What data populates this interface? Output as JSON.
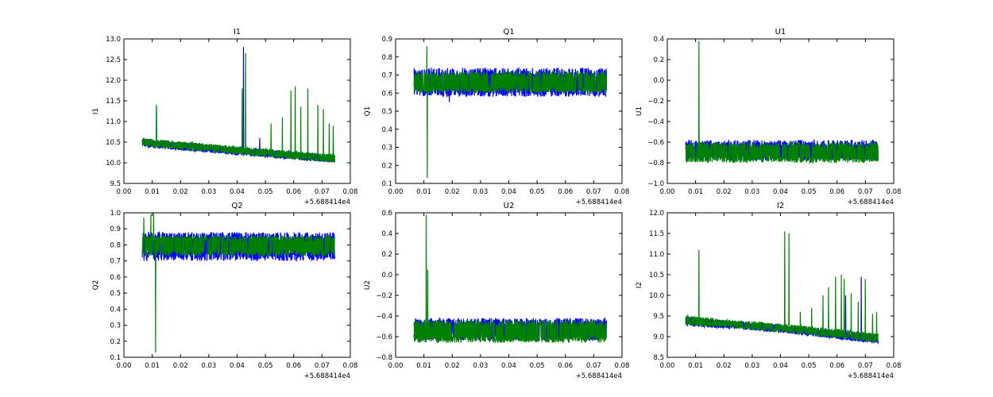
{
  "chart_data": [
    {
      "type": "line",
      "title": "I1",
      "ylabel": "I1",
      "xlabel": "",
      "offset_text": "+5.688414e4",
      "xlim": [
        0.0,
        0.08
      ],
      "ylim": [
        9.5,
        13.0
      ],
      "xticks": [
        "0.00",
        "0.01",
        "0.02",
        "0.03",
        "0.04",
        "0.05",
        "0.06",
        "0.07",
        "0.08"
      ],
      "yticks": [
        "9.5",
        "10.0",
        "10.5",
        "11.0",
        "11.5",
        "12.0",
        "12.5",
        "13.0"
      ],
      "x_range_data": [
        0.0065,
        0.0745
      ],
      "series": [
        {
          "color": "#0000ff",
          "band": [
            [
              0.0065,
              10.38,
              10.58
            ],
            [
              0.02,
              10.3,
              10.5
            ],
            [
              0.04,
              10.18,
              10.38
            ],
            [
              0.0745,
              10.0,
              10.18
            ]
          ],
          "spikes": [
            [
              0.0115,
              11.35
            ],
            [
              0.0422,
              12.8
            ],
            [
              0.048,
              10.6
            ]
          ]
        },
        {
          "color": "#008000",
          "band": [
            [
              0.0065,
              10.4,
              10.6
            ],
            [
              0.02,
              10.32,
              10.52
            ],
            [
              0.04,
              10.2,
              10.4
            ],
            [
              0.0745,
              10.0,
              10.2
            ]
          ],
          "spikes": [
            [
              0.0115,
              11.4
            ],
            [
              0.0418,
              11.8
            ],
            [
              0.043,
              12.65
            ],
            [
              0.052,
              10.95
            ],
            [
              0.056,
              11.1
            ],
            [
              0.059,
              11.75
            ],
            [
              0.0605,
              11.85
            ],
            [
              0.0625,
              11.35
            ],
            [
              0.065,
              11.8
            ],
            [
              0.0685,
              11.4
            ],
            [
              0.0705,
              11.3
            ],
            [
              0.0725,
              10.95
            ],
            [
              0.074,
              10.9
            ]
          ]
        }
      ]
    },
    {
      "type": "line",
      "title": "Q1",
      "ylabel": "Q1",
      "xlabel": "",
      "offset_text": "+5.688414e4",
      "xlim": [
        0.0,
        0.08
      ],
      "ylim": [
        0.1,
        0.9
      ],
      "xticks": [
        "0.00",
        "0.01",
        "0.02",
        "0.03",
        "0.04",
        "0.05",
        "0.06",
        "0.07",
        "0.08"
      ],
      "yticks": [
        "0.1",
        "0.2",
        "0.3",
        "0.4",
        "0.5",
        "0.6",
        "0.7",
        "0.8",
        "0.9"
      ],
      "x_range_data": [
        0.0065,
        0.0745
      ],
      "series": [
        {
          "color": "#0000ff",
          "band": [
            [
              0.0065,
              0.58,
              0.74
            ],
            [
              0.0745,
              0.58,
              0.74
            ]
          ],
          "spikes": [
            [
              0.019,
              0.55
            ]
          ]
        },
        {
          "color": "#008000",
          "band": [
            [
              0.0065,
              0.6,
              0.72
            ],
            [
              0.0745,
              0.6,
              0.72
            ]
          ],
          "spikes": [
            [
              0.0112,
              0.13
            ],
            [
              0.011,
              0.86
            ]
          ]
        }
      ]
    },
    {
      "type": "line",
      "title": "U1",
      "ylabel": "U1",
      "xlabel": "",
      "offset_text": "+5.688414e4",
      "xlim": [
        0.0,
        0.08
      ],
      "ylim": [
        -1.0,
        0.4
      ],
      "xticks": [
        "0.00",
        "0.01",
        "0.02",
        "0.03",
        "0.04",
        "0.05",
        "0.06",
        "0.07",
        "0.08"
      ],
      "yticks": [
        "−1.0",
        "−0.8",
        "−0.6",
        "−0.4",
        "−0.2",
        "0.0",
        "0.2",
        "0.4"
      ],
      "x_range_data": [
        0.0065,
        0.0745
      ],
      "series": [
        {
          "color": "#0000ff",
          "band": [
            [
              0.0065,
              -0.78,
              -0.58
            ],
            [
              0.0745,
              -0.78,
              -0.58
            ]
          ],
          "spikes": []
        },
        {
          "color": "#008000",
          "band": [
            [
              0.0065,
              -0.8,
              -0.6
            ],
            [
              0.0745,
              -0.8,
              -0.6
            ]
          ],
          "spikes": [
            [
              0.0112,
              0.38
            ]
          ]
        }
      ]
    },
    {
      "type": "line",
      "title": "Q2",
      "ylabel": "Q2",
      "xlabel": "",
      "offset_text": "+5.688414e4",
      "xlim": [
        0.0,
        0.08
      ],
      "ylim": [
        0.1,
        1.0
      ],
      "xticks": [
        "0.00",
        "0.01",
        "0.02",
        "0.03",
        "0.04",
        "0.05",
        "0.06",
        "0.07",
        "0.08"
      ],
      "yticks": [
        "0.1",
        "0.2",
        "0.3",
        "0.4",
        "0.5",
        "0.6",
        "0.7",
        "0.8",
        "0.9",
        "1.0"
      ],
      "x_range_data": [
        0.0065,
        0.0745
      ],
      "series": [
        {
          "color": "#0000ff",
          "band": [
            [
              0.0065,
              0.7,
              0.88
            ],
            [
              0.0745,
              0.7,
              0.88
            ]
          ],
          "spikes": [
            [
              0.0112,
              0.57
            ]
          ]
        },
        {
          "color": "#008000",
          "band": [
            [
              0.0065,
              0.73,
              0.86
            ],
            [
              0.0745,
              0.73,
              0.86
            ]
          ],
          "spikes": [
            [
              0.0112,
              0.13
            ],
            [
              0.0105,
              1.0
            ],
            [
              0.0095,
              0.99
            ],
            [
              0.007,
              0.97
            ]
          ]
        }
      ]
    },
    {
      "type": "line",
      "title": "U2",
      "ylabel": "U2",
      "xlabel": "",
      "offset_text": "+5.688414e4",
      "xlim": [
        0.0,
        0.08
      ],
      "ylim": [
        -0.8,
        0.6
      ],
      "xticks": [
        "0.00",
        "0.01",
        "0.02",
        "0.03",
        "0.04",
        "0.05",
        "0.06",
        "0.07",
        "0.08"
      ],
      "yticks": [
        "−0.8",
        "−0.6",
        "−0.4",
        "−0.2",
        "0.0",
        "0.2",
        "0.4",
        "0.6"
      ],
      "x_range_data": [
        0.0065,
        0.0745
      ],
      "series": [
        {
          "color": "#0000ff",
          "band": [
            [
              0.0065,
              -0.64,
              -0.42
            ],
            [
              0.0745,
              -0.64,
              -0.42
            ]
          ],
          "spikes": []
        },
        {
          "color": "#008000",
          "band": [
            [
              0.0065,
              -0.66,
              -0.44
            ],
            [
              0.0745,
              -0.66,
              -0.44
            ]
          ],
          "spikes": [
            [
              0.0108,
              0.58
            ],
            [
              0.0113,
              0.05
            ]
          ]
        }
      ]
    },
    {
      "type": "line",
      "title": "I2",
      "ylabel": "I2",
      "xlabel": "",
      "offset_text": "+5.688414e4",
      "xlim": [
        0.0,
        0.08
      ],
      "ylim": [
        8.5,
        12.0
      ],
      "xticks": [
        "0.00",
        "0.01",
        "0.02",
        "0.03",
        "0.04",
        "0.05",
        "0.06",
        "0.07",
        "0.08"
      ],
      "yticks": [
        "8.5",
        "9.0",
        "9.5",
        "10.0",
        "10.5",
        "11.0",
        "11.5",
        "12.0"
      ],
      "x_range_data": [
        0.0065,
        0.0745
      ],
      "series": [
        {
          "color": "#0000ff",
          "band": [
            [
              0.0065,
              9.25,
              9.5
            ],
            [
              0.02,
              9.2,
              9.4
            ],
            [
              0.04,
              9.1,
              9.3
            ],
            [
              0.0745,
              8.82,
              9.05
            ]
          ],
          "spikes": [
            [
              0.0685,
              10.45
            ],
            [
              0.063,
              10.0
            ]
          ]
        },
        {
          "color": "#008000",
          "band": [
            [
              0.0065,
              9.28,
              9.52
            ],
            [
              0.02,
              9.22,
              9.42
            ],
            [
              0.04,
              9.12,
              9.32
            ],
            [
              0.0745,
              8.85,
              9.08
            ]
          ],
          "spikes": [
            [
              0.0112,
              11.1
            ],
            [
              0.0415,
              11.55
            ],
            [
              0.043,
              11.5
            ],
            [
              0.047,
              9.6
            ],
            [
              0.051,
              9.7
            ],
            [
              0.055,
              10.0
            ],
            [
              0.057,
              10.2
            ],
            [
              0.0595,
              10.45
            ],
            [
              0.0615,
              10.5
            ],
            [
              0.0625,
              10.4
            ],
            [
              0.065,
              10.05
            ],
            [
              0.0675,
              9.85
            ],
            [
              0.07,
              10.4
            ],
            [
              0.0725,
              9.55
            ],
            [
              0.074,
              9.6
            ]
          ]
        }
      ]
    }
  ]
}
